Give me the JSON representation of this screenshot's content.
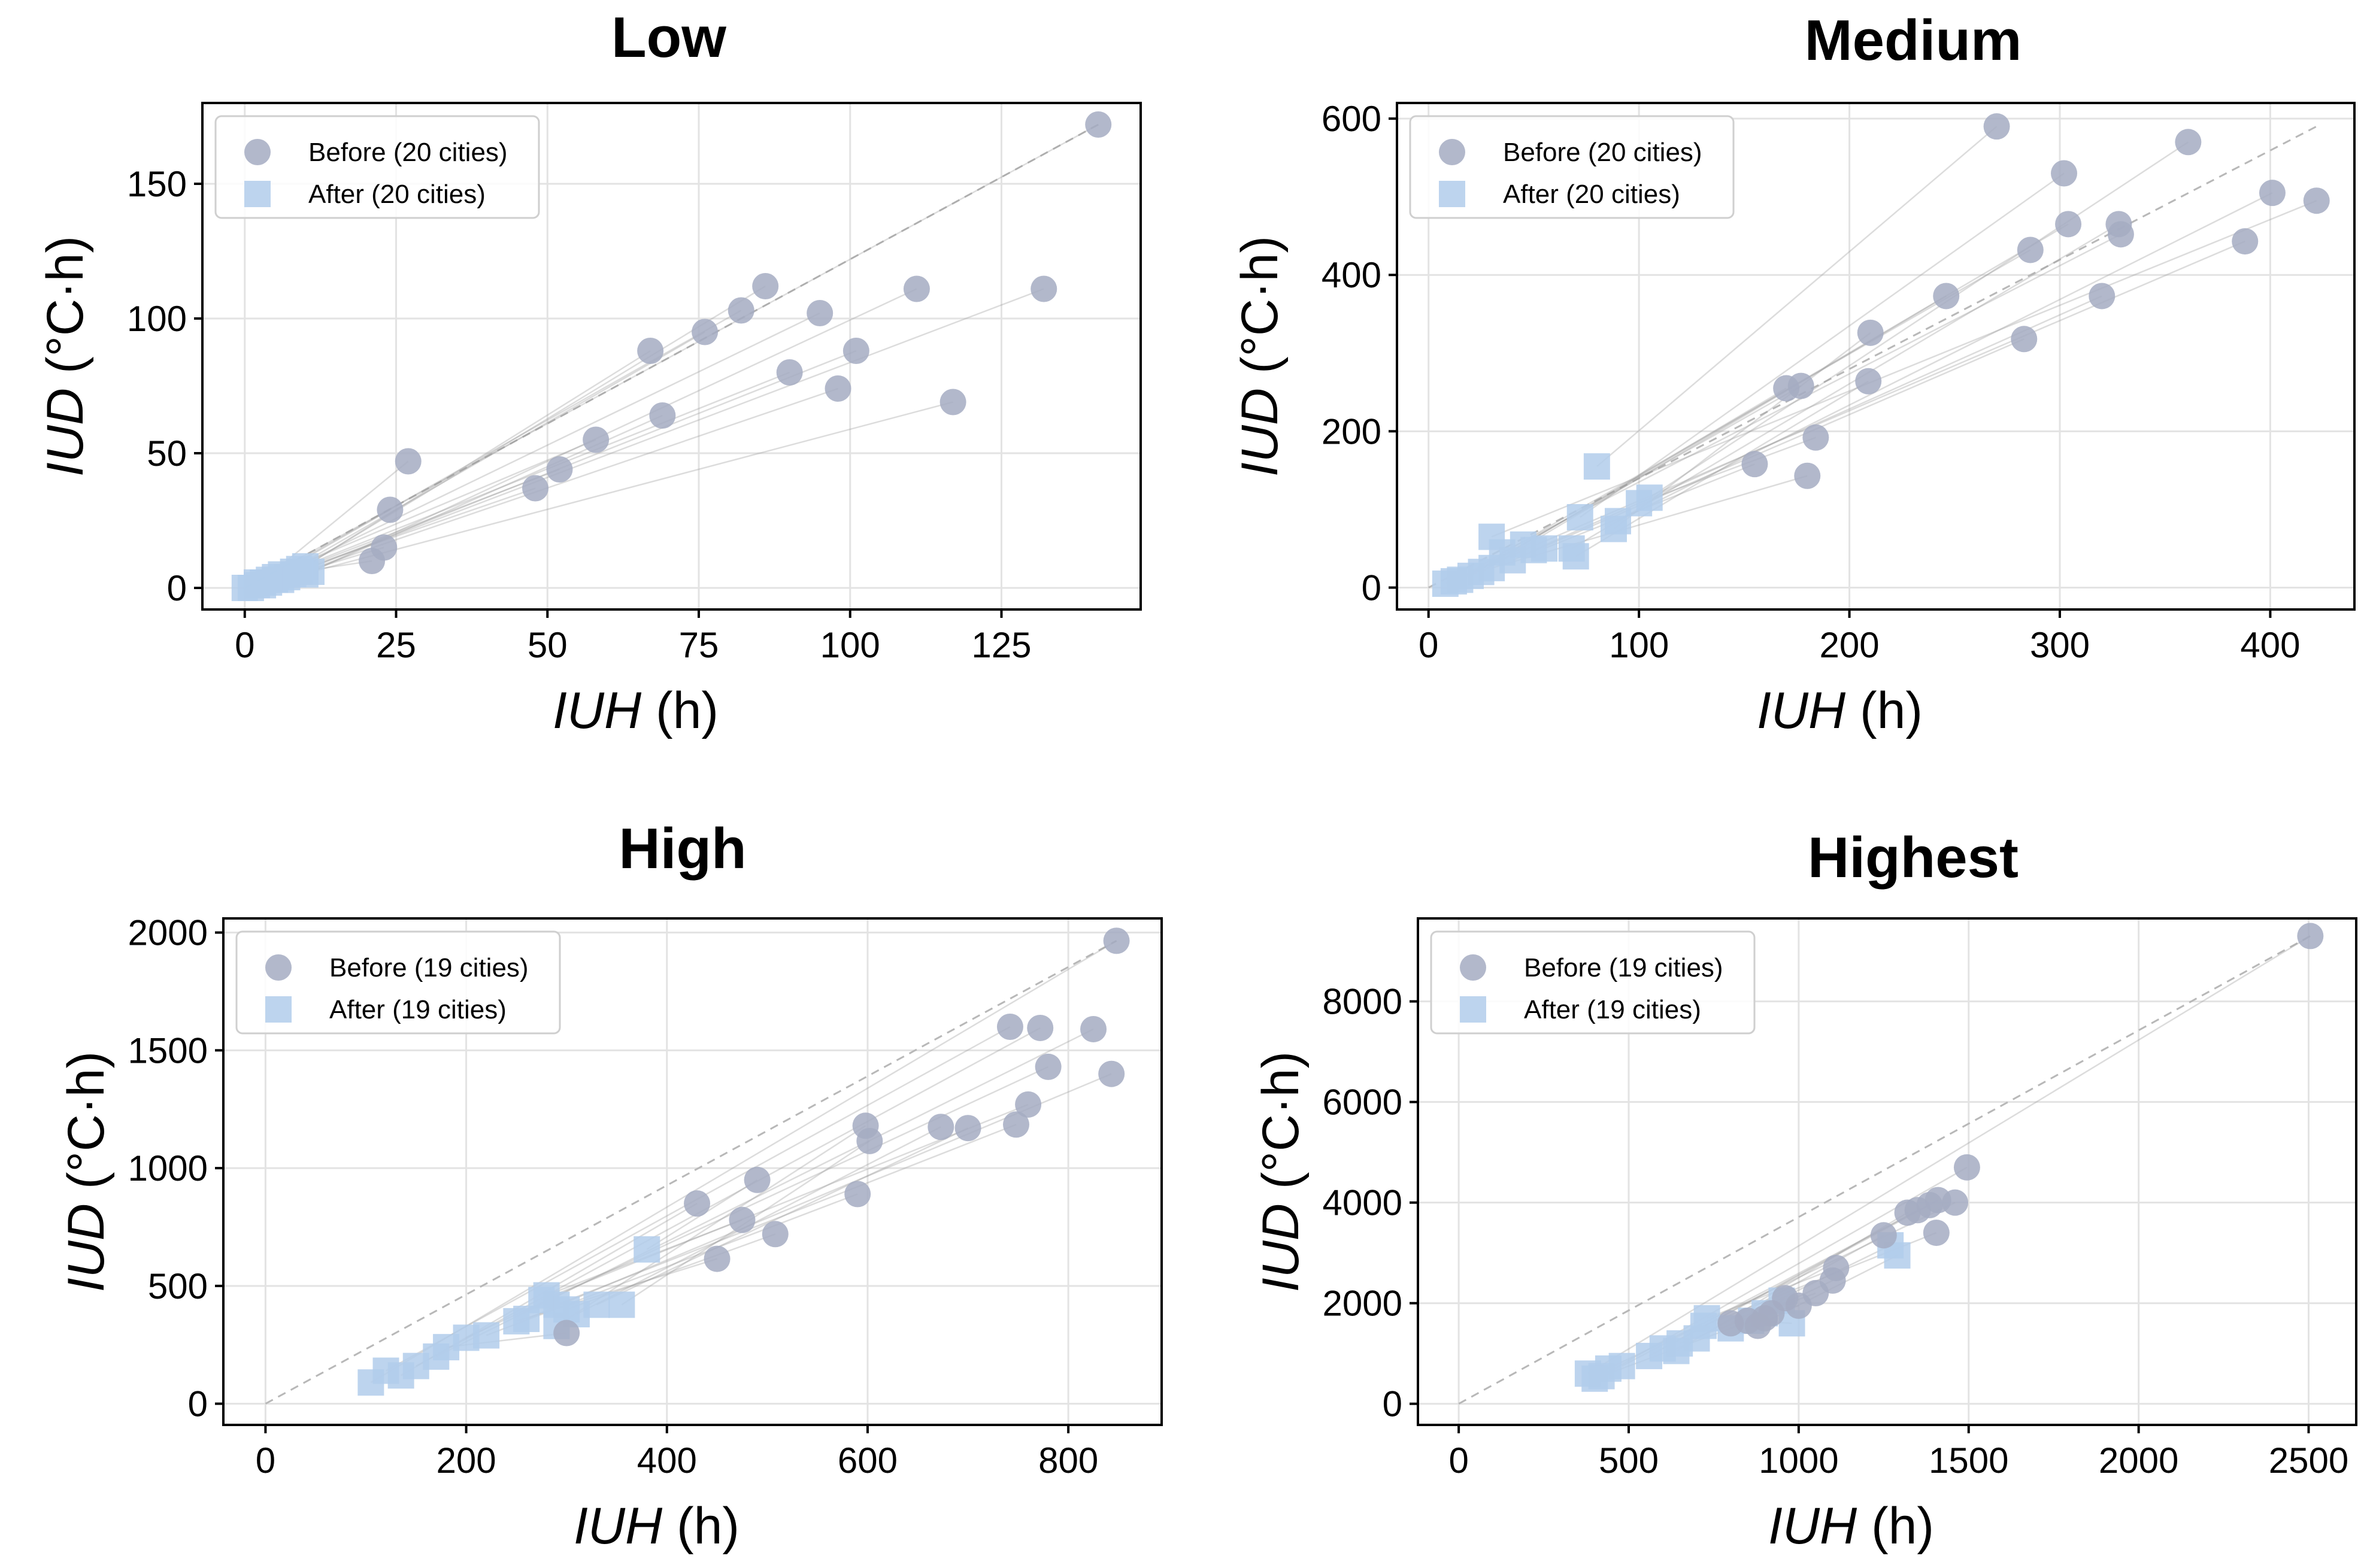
{
  "chart_data": [
    {
      "type": "scatter",
      "title": "Low",
      "xlabel_var": "IUH",
      "xlabel_unit": " (h)",
      "ylabel_var": "IUD",
      "ylabel_unit": " (°C·h)",
      "xlim": [
        -7,
        148
      ],
      "ylim": [
        -8,
        180
      ],
      "xticks": [
        0,
        25,
        50,
        75,
        100,
        125
      ],
      "yticks": [
        0,
        50,
        100,
        150
      ],
      "legend_before": "Before (20 cities)",
      "legend_after": "After (20 cities)",
      "before": [
        [
          141,
          172
        ],
        [
          27,
          47
        ],
        [
          24,
          29
        ],
        [
          23,
          15
        ],
        [
          21,
          10
        ],
        [
          48,
          37
        ],
        [
          52,
          44
        ],
        [
          67,
          88
        ],
        [
          69,
          64
        ],
        [
          76,
          95
        ],
        [
          82,
          103
        ],
        [
          86,
          112
        ],
        [
          95,
          102
        ],
        [
          98,
          74
        ],
        [
          101,
          88
        ],
        [
          111,
          111
        ],
        [
          117,
          69
        ],
        [
          132,
          111
        ],
        [
          58,
          55
        ],
        [
          90,
          80
        ]
      ],
      "after": [
        [
          0,
          0
        ],
        [
          2,
          1
        ],
        [
          3,
          2
        ],
        [
          5,
          3
        ],
        [
          6,
          5
        ],
        [
          8,
          6
        ],
        [
          9,
          7
        ],
        [
          10,
          8
        ],
        [
          11,
          6
        ],
        [
          4,
          2
        ],
        [
          1,
          0
        ],
        [
          7,
          4
        ],
        [
          5,
          4
        ],
        [
          3,
          1
        ],
        [
          8,
          5
        ],
        [
          10,
          5
        ],
        [
          6,
          3
        ],
        [
          9,
          6
        ],
        [
          2,
          2
        ],
        [
          4,
          3
        ]
      ],
      "diag_end": [
        141,
        172
      ]
    },
    {
      "type": "scatter",
      "title": "Medium",
      "xlabel_var": "IUH",
      "xlabel_unit": " (h)",
      "ylabel_var": "IUD",
      "ylabel_unit": " (°C·h)",
      "xlim": [
        -15,
        440
      ],
      "ylim": [
        -28,
        620
      ],
      "xticks": [
        0,
        100,
        200,
        300,
        400
      ],
      "yticks": [
        0,
        200,
        400,
        600
      ],
      "legend_before": "Before (20 cities)",
      "legend_after": "After (20 cities)",
      "before": [
        [
          270,
          590
        ],
        [
          361,
          570
        ],
        [
          302,
          530
        ],
        [
          401,
          505
        ],
        [
          422,
          495
        ],
        [
          304,
          465
        ],
        [
          328,
          465
        ],
        [
          329,
          452
        ],
        [
          286,
          432
        ],
        [
          388,
          443
        ],
        [
          246,
          373
        ],
        [
          320,
          373
        ],
        [
          210,
          326
        ],
        [
          283,
          318
        ],
        [
          170,
          255
        ],
        [
          177,
          258
        ],
        [
          209,
          264
        ],
        [
          184,
          192
        ],
        [
          155,
          158
        ],
        [
          180,
          143
        ]
      ],
      "after": [
        [
          80,
          155
        ],
        [
          105,
          115
        ],
        [
          72,
          90
        ],
        [
          90,
          85
        ],
        [
          30,
          65
        ],
        [
          45,
          55
        ],
        [
          68,
          50
        ],
        [
          35,
          45
        ],
        [
          12,
          8
        ],
        [
          8,
          5
        ],
        [
          25,
          20
        ],
        [
          50,
          48
        ],
        [
          88,
          75
        ],
        [
          40,
          35
        ],
        [
          20,
          15
        ],
        [
          15,
          10
        ],
        [
          70,
          40
        ],
        [
          100,
          108
        ],
        [
          55,
          50
        ],
        [
          30,
          25
        ]
      ],
      "diag_end": [
        422,
        590
      ]
    },
    {
      "type": "scatter",
      "title": "High",
      "xlabel_var": "IUH",
      "xlabel_unit": " (h)",
      "ylabel_var": "IUD",
      "ylabel_unit": " (°C·h)",
      "xlim": [
        -42,
        893
      ],
      "ylim": [
        -90,
        2060
      ],
      "xticks": [
        0,
        200,
        400,
        600,
        800
      ],
      "yticks": [
        0,
        500,
        1000,
        1500,
        2000
      ],
      "legend_before": "Before (19 cities)",
      "legend_after": "After (19 cities)",
      "before": [
        [
          848,
          1965
        ],
        [
          742,
          1600
        ],
        [
          772,
          1595
        ],
        [
          825,
          1590
        ],
        [
          780,
          1430
        ],
        [
          843,
          1400
        ],
        [
          760,
          1270
        ],
        [
          748,
          1185
        ],
        [
          598,
          1180
        ],
        [
          673,
          1175
        ],
        [
          700,
          1170
        ],
        [
          602,
          1115
        ],
        [
          490,
          950
        ],
        [
          590,
          890
        ],
        [
          430,
          850
        ],
        [
          475,
          780
        ],
        [
          508,
          720
        ],
        [
          450,
          615
        ],
        [
          300,
          300
        ]
      ],
      "after": [
        [
          105,
          90
        ],
        [
          120,
          140
        ],
        [
          150,
          160
        ],
        [
          170,
          200
        ],
        [
          200,
          280
        ],
        [
          260,
          360
        ],
        [
          275,
          440
        ],
        [
          290,
          420
        ],
        [
          290,
          330
        ],
        [
          310,
          380
        ],
        [
          330,
          420
        ],
        [
          355,
          420
        ],
        [
          380,
          655
        ],
        [
          220,
          290
        ],
        [
          135,
          120
        ],
        [
          280,
          460
        ],
        [
          300,
          400
        ],
        [
          250,
          350
        ],
        [
          180,
          240
        ]
      ],
      "diag_end": [
        848,
        1965
      ]
    },
    {
      "type": "scatter",
      "title": "Highest",
      "xlabel_var": "IUH",
      "xlabel_unit": " (h)",
      "ylabel_var": "IUD",
      "ylabel_unit": " (°C·h)",
      "xlim": [
        -120,
        2640
      ],
      "ylim": [
        -420,
        9650
      ],
      "xticks": [
        0,
        500,
        1000,
        1500,
        2000,
        2500
      ],
      "yticks": [
        0,
        2000,
        4000,
        6000,
        8000
      ],
      "legend_before": "Before (19 cities)",
      "legend_after": "After (19 cities)",
      "before": [
        [
          2505,
          9300
        ],
        [
          1495,
          4700
        ],
        [
          1460,
          4000
        ],
        [
          1410,
          4050
        ],
        [
          1385,
          3950
        ],
        [
          1350,
          3850
        ],
        [
          1320,
          3800
        ],
        [
          1250,
          3350
        ],
        [
          1405,
          3400
        ],
        [
          1110,
          2700
        ],
        [
          1100,
          2450
        ],
        [
          960,
          2100
        ],
        [
          1000,
          1950
        ],
        [
          900,
          1700
        ],
        [
          850,
          1650
        ],
        [
          880,
          1550
        ],
        [
          800,
          1600
        ],
        [
          920,
          1800
        ],
        [
          1050,
          2200
        ]
      ],
      "after": [
        [
          380,
          600
        ],
        [
          420,
          550
        ],
        [
          440,
          700
        ],
        [
          480,
          750
        ],
        [
          560,
          950
        ],
        [
          600,
          1100
        ],
        [
          640,
          1050
        ],
        [
          700,
          1300
        ],
        [
          720,
          1550
        ],
        [
          730,
          1700
        ],
        [
          800,
          1500
        ],
        [
          860,
          1650
        ],
        [
          900,
          1800
        ],
        [
          950,
          2050
        ],
        [
          980,
          1600
        ],
        [
          1290,
          2950
        ],
        [
          1270,
          3150
        ],
        [
          400,
          500
        ],
        [
          650,
          1200
        ]
      ],
      "diag_end": [
        2505,
        9300
      ]
    }
  ]
}
